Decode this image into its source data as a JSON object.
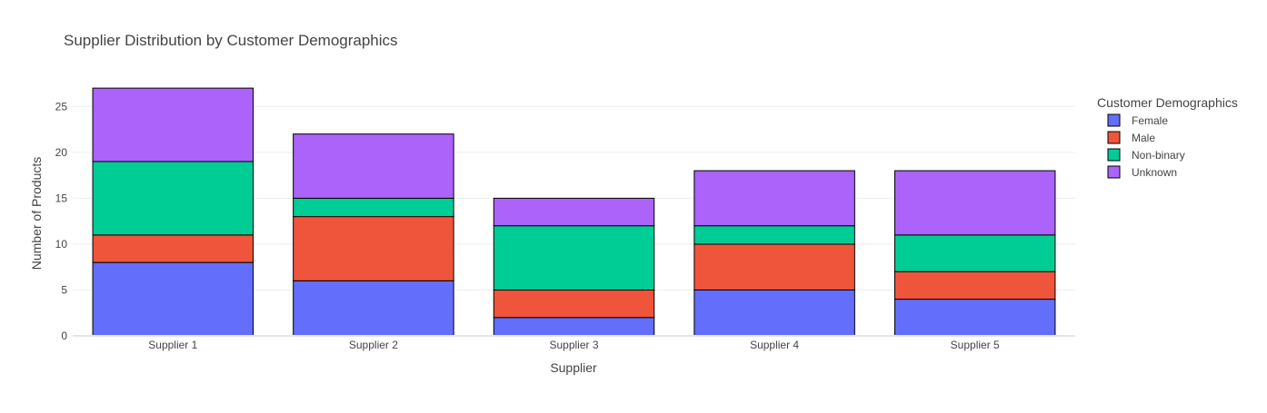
{
  "chart_data": {
    "type": "bar",
    "barmode": "stack",
    "title": "Supplier Distribution by Customer Demographics",
    "xlabel": "Supplier",
    "ylabel": "Number of Products",
    "categories": [
      "Supplier 1",
      "Supplier 2",
      "Supplier 3",
      "Supplier 4",
      "Supplier 5"
    ],
    "ylim": [
      0,
      28
    ],
    "yticks": [
      0,
      5,
      10,
      15,
      20,
      25
    ],
    "grid": true,
    "legend": {
      "title": "Customer Demographics",
      "placement": "top-right"
    },
    "series": [
      {
        "name": "Female",
        "color": "#636efa",
        "values": [
          8,
          6,
          2,
          5,
          4
        ]
      },
      {
        "name": "Male",
        "color": "#ef553b",
        "values": [
          3,
          7,
          3,
          5,
          3
        ]
      },
      {
        "name": "Non-binary",
        "color": "#00cc96",
        "values": [
          8,
          2,
          7,
          2,
          4
        ]
      },
      {
        "name": "Unknown",
        "color": "#ab63fa",
        "values": [
          8,
          7,
          3,
          6,
          7
        ]
      }
    ]
  }
}
